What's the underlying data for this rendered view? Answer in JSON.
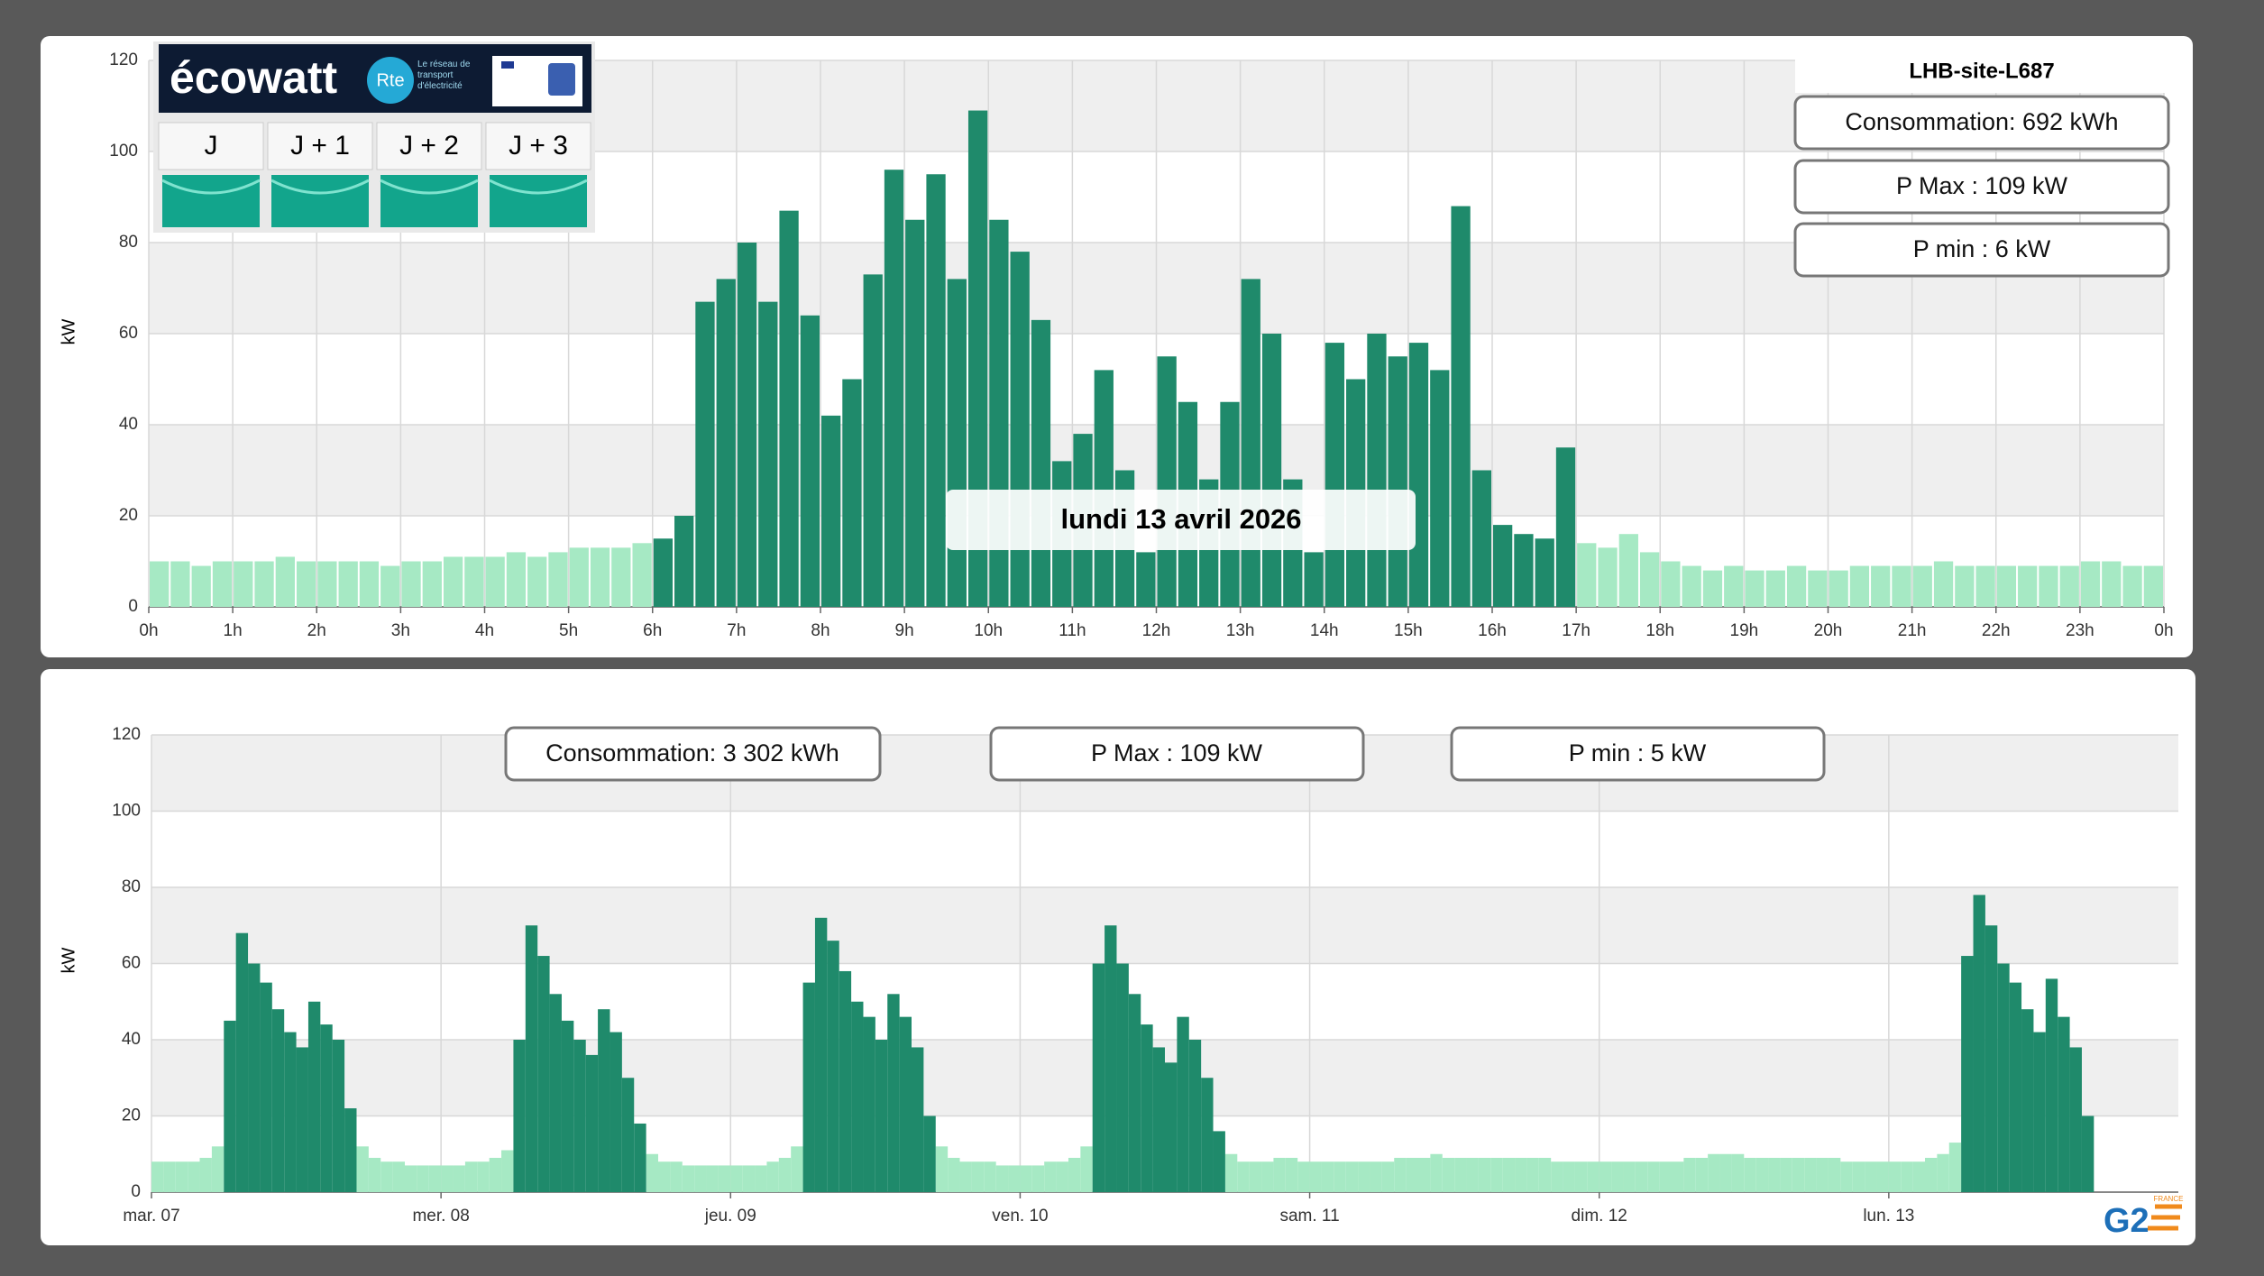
{
  "ecowatt": {
    "brand": "écowatt",
    "rte": "Rte",
    "rte_text": "Le réseau de transport d'électricité",
    "days": [
      "J",
      "J + 1",
      "J + 2",
      "J + 3"
    ]
  },
  "logo": {
    "name": "G2",
    "country": "FRANCE"
  },
  "chart_data": [
    {
      "type": "bar",
      "title": "lundi 13 avril 2026",
      "site": "LHB-site-L687",
      "y_label": "kW",
      "stats": [
        "Consommation: 692 kWh",
        "P Max :  109 kW",
        "P min : 6 kW"
      ],
      "xlim": [
        0,
        1440
      ],
      "ylim": [
        0,
        120
      ],
      "yticks": [
        0,
        20,
        40,
        60,
        80,
        100,
        120
      ],
      "xticks": [
        {
          "value": 0,
          "label": "0h"
        },
        {
          "value": 60,
          "label": "1h"
        },
        {
          "value": 120,
          "label": "2h"
        },
        {
          "value": 180,
          "label": "3h"
        },
        {
          "value": 240,
          "label": "4h"
        },
        {
          "value": 300,
          "label": "5h"
        },
        {
          "value": 360,
          "label": "6h"
        },
        {
          "value": 420,
          "label": "7h"
        },
        {
          "value": 480,
          "label": "8h"
        },
        {
          "value": 540,
          "label": "9h"
        },
        {
          "value": 600,
          "label": "10h"
        },
        {
          "value": 660,
          "label": "11h"
        },
        {
          "value": 720,
          "label": "12h"
        },
        {
          "value": 780,
          "label": "13h"
        },
        {
          "value": 840,
          "label": "14h"
        },
        {
          "value": 900,
          "label": "15h"
        },
        {
          "value": 960,
          "label": "16h"
        },
        {
          "value": 1020,
          "label": "17h"
        },
        {
          "value": 1080,
          "label": "18h"
        },
        {
          "value": 1140,
          "label": "19h"
        },
        {
          "value": 1200,
          "label": "20h"
        },
        {
          "value": 1260,
          "label": "21h"
        },
        {
          "value": 1320,
          "label": "22h"
        },
        {
          "value": 1380,
          "label": "23h"
        },
        {
          "value": 1440,
          "label": "0h"
        }
      ],
      "x": [
        0,
        15,
        30,
        45,
        60,
        75,
        90,
        105,
        120,
        135,
        150,
        165,
        180,
        195,
        210,
        225,
        240,
        255,
        270,
        285,
        300,
        315,
        330,
        345,
        360,
        375,
        390,
        405,
        420,
        435,
        450,
        465,
        480,
        495,
        510,
        525,
        540,
        555,
        570,
        585,
        600,
        615,
        630,
        645,
        660,
        675,
        690,
        705,
        720,
        735,
        750,
        765,
        780,
        795,
        810,
        825,
        840,
        855,
        870,
        885,
        900,
        915,
        930,
        945,
        960,
        975,
        990,
        1005,
        1020,
        1035,
        1050,
        1065,
        1080,
        1095,
        1110,
        1125,
        1140,
        1155,
        1170,
        1185,
        1200,
        1215,
        1230,
        1245,
        1260,
        1275,
        1290,
        1305,
        1320,
        1335,
        1350,
        1365,
        1380,
        1395,
        1410,
        1425
      ],
      "series": [
        {
          "color": "#a6e9c4",
          "values": [
            10,
            10,
            9,
            10,
            10,
            10,
            11,
            10,
            10,
            10,
            10,
            9,
            10,
            10,
            11,
            11,
            11,
            12,
            11,
            12,
            13,
            13,
            13,
            14,
            null,
            null,
            null,
            null,
            null,
            null,
            null,
            null,
            null,
            null,
            null,
            null,
            null,
            null,
            null,
            null,
            null,
            null,
            null,
            null,
            null,
            null,
            null,
            null,
            null,
            null,
            null,
            null,
            null,
            null,
            null,
            null,
            null,
            null,
            null,
            null,
            null,
            null,
            null,
            null,
            null,
            null,
            null,
            null,
            14,
            13,
            16,
            12,
            10,
            9,
            8,
            9,
            8,
            8,
            9,
            8,
            8,
            9,
            9,
            9,
            9,
            10,
            9,
            9,
            9,
            9,
            9,
            9,
            10,
            10,
            9,
            9
          ]
        },
        {
          "color": "#1f8a6b",
          "values": [
            null,
            null,
            null,
            null,
            null,
            null,
            null,
            null,
            null,
            null,
            null,
            null,
            null,
            null,
            null,
            null,
            null,
            null,
            null,
            null,
            null,
            null,
            null,
            null,
            15,
            20,
            67,
            72,
            80,
            67,
            87,
            64,
            42,
            50,
            73,
            96,
            85,
            95,
            72,
            109,
            85,
            78,
            63,
            32,
            38,
            52,
            30,
            12,
            55,
            45,
            28,
            45,
            72,
            60,
            28,
            12,
            58,
            50,
            60,
            55,
            58,
            52,
            88,
            30,
            18,
            16,
            15,
            35,
            null,
            null,
            null,
            null,
            null,
            null,
            null,
            null,
            null,
            null,
            null,
            null,
            null,
            null,
            null,
            null,
            null,
            null,
            null,
            null,
            null,
            null,
            null,
            null,
            null,
            null,
            null,
            null
          ]
        }
      ]
    },
    {
      "type": "bar",
      "y_label": "kW",
      "stats": [
        "Consommation: 3 302 kWh",
        "P Max :  109 kW",
        "P min : 5 kW"
      ],
      "xlim": [
        0,
        168
      ],
      "ylim": [
        0,
        120
      ],
      "yticks": [
        0,
        20,
        40,
        60,
        80,
        100,
        120
      ],
      "xticks": [
        {
          "value": 0,
          "label": "mar. 07"
        },
        {
          "value": 24,
          "label": "mer. 08"
        },
        {
          "value": 48,
          "label": "jeu. 09"
        },
        {
          "value": 72,
          "label": "ven. 10"
        },
        {
          "value": 96,
          "label": "sam. 11"
        },
        {
          "value": 120,
          "label": "dim. 12"
        },
        {
          "value": 144,
          "label": "lun. 13"
        }
      ],
      "x": [
        0,
        1,
        2,
        3,
        4,
        5,
        6,
        7,
        8,
        9,
        10,
        11,
        12,
        13,
        14,
        15,
        16,
        17,
        18,
        19,
        20,
        21,
        22,
        23,
        24,
        25,
        26,
        27,
        28,
        29,
        30,
        31,
        32,
        33,
        34,
        35,
        36,
        37,
        38,
        39,
        40,
        41,
        42,
        43,
        44,
        45,
        46,
        47,
        48,
        49,
        50,
        51,
        52,
        53,
        54,
        55,
        56,
        57,
        58,
        59,
        60,
        61,
        62,
        63,
        64,
        65,
        66,
        67,
        68,
        69,
        70,
        71,
        72,
        73,
        74,
        75,
        76,
        77,
        78,
        79,
        80,
        81,
        82,
        83,
        84,
        85,
        86,
        87,
        88,
        89,
        90,
        91,
        92,
        93,
        94,
        95,
        96,
        97,
        98,
        99,
        100,
        101,
        102,
        103,
        104,
        105,
        106,
        107,
        108,
        109,
        110,
        111,
        112,
        113,
        114,
        115,
        116,
        117,
        118,
        119,
        120,
        121,
        122,
        123,
        124,
        125,
        126,
        127,
        128,
        129,
        130,
        131,
        132,
        133,
        134,
        135,
        136,
        137,
        138,
        139,
        140,
        141,
        142,
        143,
        144,
        145,
        146,
        147,
        148,
        149,
        150,
        151,
        152,
        153,
        154,
        155,
        156,
        157,
        158,
        159,
        160
      ],
      "series": [
        {
          "color": "#a6e9c4",
          "values": [
            8,
            8,
            8,
            8,
            9,
            12,
            null,
            null,
            null,
            null,
            null,
            null,
            null,
            null,
            null,
            null,
            null,
            12,
            9,
            8,
            8,
            7,
            7,
            7,
            7,
            7,
            8,
            8,
            9,
            11,
            null,
            null,
            null,
            null,
            null,
            null,
            null,
            null,
            null,
            null,
            null,
            10,
            8,
            8,
            7,
            7,
            7,
            7,
            7,
            7,
            7,
            8,
            9,
            12,
            null,
            null,
            null,
            null,
            null,
            null,
            null,
            null,
            null,
            null,
            null,
            12,
            9,
            8,
            8,
            8,
            7,
            7,
            7,
            7,
            8,
            8,
            9,
            12,
            null,
            null,
            null,
            null,
            null,
            null,
            null,
            null,
            null,
            null,
            null,
            10,
            8,
            8,
            8,
            9,
            9,
            8,
            8,
            8,
            8,
            8,
            8,
            8,
            8,
            9,
            9,
            9,
            10,
            9,
            9,
            9,
            9,
            9,
            9,
            9,
            9,
            9,
            8,
            8,
            8,
            8,
            8,
            8,
            8,
            8,
            8,
            8,
            8,
            9,
            9,
            10,
            10,
            10,
            9,
            9,
            9,
            9,
            9,
            9,
            9,
            9,
            8,
            8,
            8,
            8,
            8,
            8,
            8,
            9,
            10,
            13,
            null,
            null,
            null,
            null,
            null,
            null,
            null,
            null,
            null,
            null,
            null
          ]
        },
        {
          "color": "#1f8a6b",
          "values": [
            null,
            null,
            null,
            null,
            null,
            null,
            45,
            68,
            60,
            55,
            48,
            42,
            38,
            50,
            44,
            40,
            22,
            null,
            null,
            null,
            null,
            null,
            null,
            null,
            null,
            null,
            null,
            null,
            null,
            null,
            40,
            70,
            62,
            52,
            45,
            40,
            36,
            48,
            42,
            30,
            18,
            null,
            null,
            null,
            null,
            null,
            null,
            null,
            null,
            null,
            null,
            null,
            null,
            null,
            55,
            72,
            66,
            58,
            50,
            46,
            40,
            52,
            46,
            38,
            20,
            null,
            null,
            null,
            null,
            null,
            null,
            null,
            null,
            null,
            null,
            null,
            null,
            null,
            60,
            70,
            60,
            52,
            44,
            38,
            34,
            46,
            40,
            30,
            16,
            null,
            null,
            null,
            null,
            null,
            null,
            null,
            null,
            null,
            null,
            null,
            null,
            null,
            null,
            null,
            null,
            null,
            null,
            null,
            null,
            null,
            null,
            null,
            null,
            null,
            null,
            null,
            null,
            null,
            null,
            null,
            null,
            null,
            null,
            null,
            null,
            null,
            null,
            null,
            null,
            null,
            null,
            null,
            null,
            null,
            null,
            null,
            null,
            null,
            null,
            null,
            null,
            null,
            null,
            null,
            null,
            null,
            null,
            null,
            null,
            null,
            62,
            78,
            70,
            60,
            55,
            48,
            42,
            56,
            46,
            38,
            20
          ]
        }
      ]
    }
  ]
}
